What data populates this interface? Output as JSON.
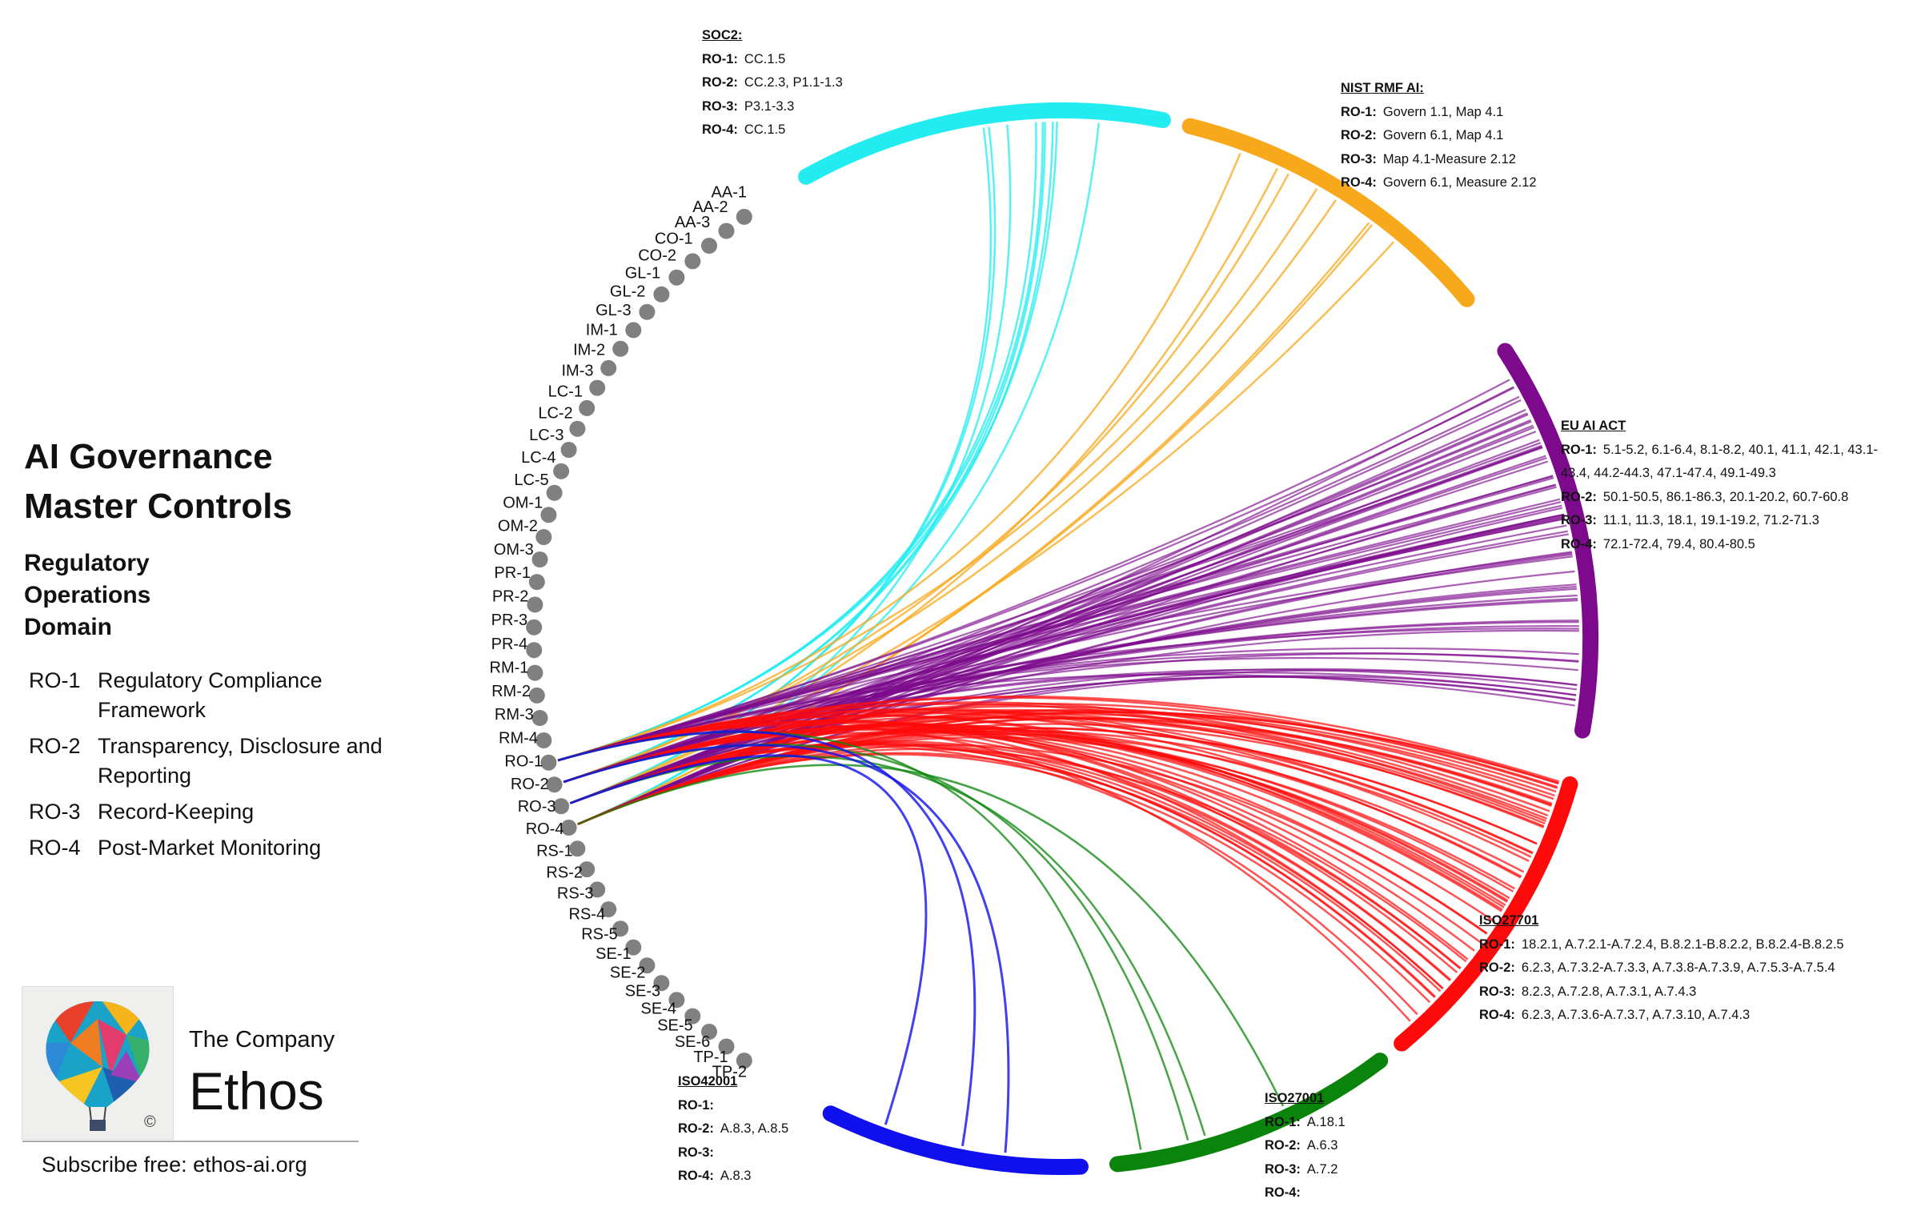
{
  "title_line1": "AI Governance",
  "title_line2": "Master Controls",
  "domain_line1": "Regulatory",
  "domain_line2": "Operations",
  "domain_line3": "Domain",
  "ro_legend": [
    {
      "id": "RO-1",
      "name": "Regulatory Compliance Framework"
    },
    {
      "id": "RO-2",
      "name": "Transparency, Disclosure and Reporting"
    },
    {
      "id": "RO-3",
      "name": "Record-Keeping"
    },
    {
      "id": "RO-4",
      "name": "Post-Market Monitoring"
    }
  ],
  "brand": {
    "company": "The Company",
    "name": "Ethos",
    "copyright": "©",
    "subscribe": "Subscribe free: ethos-ai.org"
  },
  "controls": [
    "AA-1",
    "AA-2",
    "AA-3",
    "CO-1",
    "CO-2",
    "GL-1",
    "GL-2",
    "GL-3",
    "IM-1",
    "IM-2",
    "IM-3",
    "LC-1",
    "LC-2",
    "LC-3",
    "LC-4",
    "LC-5",
    "OM-1",
    "OM-2",
    "OM-3",
    "PR-1",
    "PR-2",
    "PR-3",
    "PR-4",
    "RM-1",
    "RM-2",
    "RM-3",
    "RM-4",
    "RO-1",
    "RO-2",
    "RO-3",
    "RO-4",
    "RS-1",
    "RS-2",
    "RS-3",
    "RS-4",
    "RS-5",
    "SE-1",
    "SE-2",
    "SE-3",
    "SE-4",
    "SE-5",
    "SE-6",
    "TP-1",
    "TP-2"
  ],
  "frameworks": {
    "soc2": {
      "title": "SOC2:",
      "color": "#22ecf0",
      "rows": [
        {
          "ro": "RO-1:",
          "refs": "CC.1.5"
        },
        {
          "ro": "RO-2:",
          "refs": "CC.2.3, P1.1-1.3"
        },
        {
          "ro": "RO-3:",
          "refs": "P3.1-3.3"
        },
        {
          "ro": "RO-4:",
          "refs": "CC.1.5"
        }
      ]
    },
    "nist": {
      "title": "NIST RMF AI:",
      "color": "#f7a81b",
      "rows": [
        {
          "ro": "RO-1:",
          "refs": "Govern 1.1, Map 4.1"
        },
        {
          "ro": "RO-2:",
          "refs": "Govern 6.1, Map 4.1"
        },
        {
          "ro": "RO-3:",
          "refs": "Map 4.1-Measure 2.12"
        },
        {
          "ro": "RO-4:",
          "refs": "Govern 6.1, Measure 2.12"
        }
      ]
    },
    "euai": {
      "title": "EU AI ACT",
      "color": "#7d0a8c",
      "rows": [
        {
          "ro": "RO-1:",
          "refs": "5.1-5.2, 6.1-6.4, 8.1-8.2, 40.1, 41.1, 42.1, 43.1-43.4, 44.2-44.3, 47.1-47.4, 49.1-49.3"
        },
        {
          "ro": "RO-2:",
          "refs": "50.1-50.5, 86.1-86.3, 20.1-20.2, 60.7-60.8"
        },
        {
          "ro": "RO-3:",
          "refs": "11.1, 11.3, 18.1, 19.1-19.2, 71.2-71.3"
        },
        {
          "ro": "RO-4:",
          "refs": "72.1-72.4, 79.4, 80.4-80.5"
        }
      ]
    },
    "iso27701": {
      "title": "ISO27701",
      "color": "#ff0a0a",
      "rows": [
        {
          "ro": "RO-1:",
          "refs": "18.2.1, A.7.2.1-A.7.2.4, B.8.2.1-B.8.2.2, B.8.2.4-B.8.2.5"
        },
        {
          "ro": "RO-2:",
          "refs": "6.2.3, A.7.3.2-A.7.3.3, A.7.3.8-A.7.3.9, A.7.5.3-A.7.5.4"
        },
        {
          "ro": "RO-3:",
          "refs": "8.2.3, A.7.2.8, A.7.3.1, A.7.4.3"
        },
        {
          "ro": "RO-4:",
          "refs": "6.2.3, A.7.3.6-A.7.3.7, A.7.3.10, A.7.4.3"
        }
      ]
    },
    "iso42001": {
      "title": "ISO42001",
      "color": "#1010ee",
      "rows": [
        {
          "ro": "RO-1:",
          "refs": ""
        },
        {
          "ro": "RO-2:",
          "refs": "A.8.3, A.8.5"
        },
        {
          "ro": "RO-3:",
          "refs": ""
        },
        {
          "ro": "RO-4:",
          "refs": "A.8.3"
        }
      ]
    },
    "iso27001": {
      "title": "ISO27001",
      "color": "#0a840a",
      "rows": [
        {
          "ro": "RO-1:",
          "refs": "A.18.1"
        },
        {
          "ro": "RO-2:",
          "refs": "A.6.3"
        },
        {
          "ro": "RO-3:",
          "refs": "A.7.2"
        },
        {
          "ro": "RO-4:",
          "refs": ""
        }
      ]
    }
  },
  "dot_color": "#808080"
}
